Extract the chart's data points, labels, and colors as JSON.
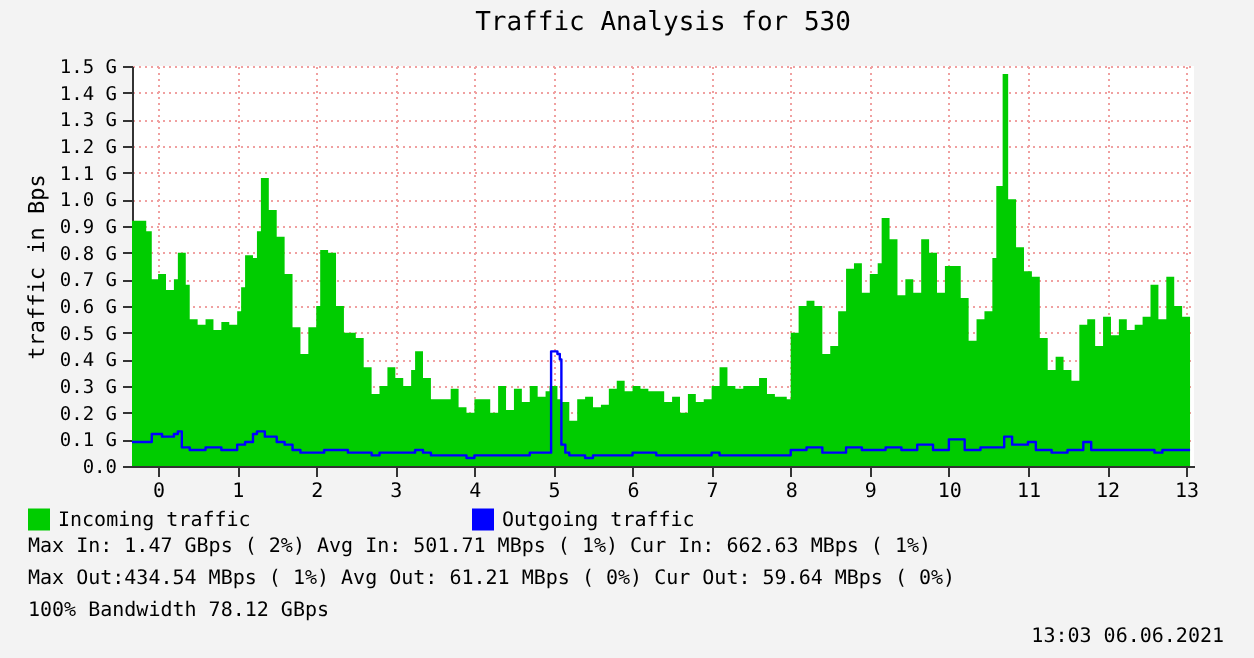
{
  "chart_data": {
    "type": "area",
    "title": "Traffic Analysis for 530",
    "ylabel": "traffic in Bps",
    "xlim": [
      -0.33,
      13.1
    ],
    "xticks": [
      0,
      1,
      2,
      3,
      4,
      5,
      6,
      7,
      8,
      9,
      10,
      11,
      12,
      13
    ],
    "ylim": [
      0,
      1.5
    ],
    "yticks": [
      {
        "value": 0,
        "label": "0.0"
      },
      {
        "value": 0.1,
        "label": "0.1 G"
      },
      {
        "value": 0.2,
        "label": "0.2 G"
      },
      {
        "value": 0.3,
        "label": "0.3 G"
      },
      {
        "value": 0.4,
        "label": "0.4 G"
      },
      {
        "value": 0.5,
        "label": "0.5 G"
      },
      {
        "value": 0.6,
        "label": "0.6 G"
      },
      {
        "value": 0.7,
        "label": "0.7 G"
      },
      {
        "value": 0.8,
        "label": "0.8 G"
      },
      {
        "value": 0.9,
        "label": "0.9 G"
      },
      {
        "value": 1.0,
        "label": "1.0 G"
      },
      {
        "value": 1.1,
        "label": "1.1 G"
      },
      {
        "value": 1.2,
        "label": "1.2 G"
      },
      {
        "value": 1.3,
        "label": "1.3 G"
      },
      {
        "value": 1.4,
        "label": "1.4 G"
      },
      {
        "value": 1.5,
        "label": "1.5 G"
      }
    ],
    "grid": true,
    "legend": "bottom",
    "marker": "none",
    "line_style": "solid",
    "series": [
      {
        "name": "Incoming traffic",
        "color": "#00cc00",
        "x": [
          -0.33,
          -0.15,
          -0.08,
          0.0,
          0.1,
          0.2,
          0.25,
          0.35,
          0.4,
          0.5,
          0.6,
          0.7,
          0.8,
          0.9,
          1.0,
          1.05,
          1.1,
          1.2,
          1.25,
          1.3,
          1.4,
          1.5,
          1.6,
          1.7,
          1.8,
          1.9,
          2.0,
          2.05,
          2.15,
          2.25,
          2.35,
          2.5,
          2.6,
          2.7,
          2.8,
          2.9,
          3.0,
          3.1,
          3.2,
          3.25,
          3.35,
          3.45,
          3.6,
          3.7,
          3.8,
          3.9,
          4.0,
          4.1,
          4.2,
          4.3,
          4.4,
          4.5,
          4.6,
          4.7,
          4.8,
          4.9,
          4.95,
          5.05,
          5.1,
          5.2,
          5.3,
          5.4,
          5.5,
          5.6,
          5.7,
          5.8,
          5.9,
          6.0,
          6.1,
          6.2,
          6.4,
          6.5,
          6.6,
          6.7,
          6.8,
          6.9,
          7.0,
          7.1,
          7.2,
          7.3,
          7.4,
          7.6,
          7.7,
          7.8,
          7.95,
          8.0,
          8.1,
          8.2,
          8.3,
          8.4,
          8.5,
          8.6,
          8.7,
          8.8,
          8.9,
          9.0,
          9.1,
          9.15,
          9.25,
          9.35,
          9.45,
          9.55,
          9.65,
          9.75,
          9.85,
          9.95,
          10.05,
          10.15,
          10.25,
          10.35,
          10.45,
          10.55,
          10.6,
          10.68,
          10.75,
          10.85,
          10.95,
          11.05,
          11.15,
          11.25,
          11.35,
          11.45,
          11.55,
          11.65,
          11.75,
          11.85,
          11.95,
          12.05,
          12.15,
          12.25,
          12.35,
          12.45,
          12.55,
          12.65,
          12.75,
          12.85,
          12.95,
          13.05
        ],
        "values": [
          0.92,
          0.88,
          0.7,
          0.72,
          0.66,
          0.7,
          0.8,
          0.68,
          0.55,
          0.53,
          0.55,
          0.51,
          0.54,
          0.53,
          0.58,
          0.67,
          0.79,
          0.78,
          0.88,
          1.08,
          0.96,
          0.86,
          0.72,
          0.52,
          0.42,
          0.52,
          0.6,
          0.81,
          0.8,
          0.6,
          0.5,
          0.48,
          0.37,
          0.27,
          0.3,
          0.37,
          0.33,
          0.3,
          0.36,
          0.43,
          0.33,
          0.25,
          0.25,
          0.29,
          0.22,
          0.2,
          0.25,
          0.25,
          0.2,
          0.3,
          0.21,
          0.29,
          0.24,
          0.3,
          0.26,
          0.28,
          0.3,
          0.25,
          0.24,
          0.17,
          0.25,
          0.26,
          0.22,
          0.23,
          0.29,
          0.32,
          0.28,
          0.3,
          0.29,
          0.28,
          0.24,
          0.26,
          0.2,
          0.27,
          0.24,
          0.25,
          0.3,
          0.37,
          0.3,
          0.29,
          0.3,
          0.33,
          0.27,
          0.26,
          0.25,
          0.5,
          0.6,
          0.62,
          0.6,
          0.42,
          0.45,
          0.58,
          0.74,
          0.76,
          0.65,
          0.72,
          0.76,
          0.93,
          0.85,
          0.64,
          0.7,
          0.65,
          0.85,
          0.8,
          0.65,
          0.75,
          0.75,
          0.63,
          0.47,
          0.55,
          0.58,
          0.78,
          1.05,
          1.47,
          1.0,
          0.82,
          0.73,
          0.71,
          0.48,
          0.36,
          0.41,
          0.36,
          0.32,
          0.53,
          0.55,
          0.45,
          0.56,
          0.49,
          0.55,
          0.51,
          0.53,
          0.56,
          0.68,
          0.55,
          0.71,
          0.6,
          0.56,
          0.65
        ]
      },
      {
        "name": "Outgoing traffic",
        "color": "#0000ff",
        "type": "step",
        "x": [
          -0.33,
          -0.1,
          -0.08,
          0.0,
          0.05,
          0.2,
          0.25,
          0.3,
          0.4,
          0.6,
          0.8,
          1.0,
          1.1,
          1.2,
          1.25,
          1.35,
          1.5,
          1.6,
          1.7,
          1.8,
          2.0,
          2.1,
          2.4,
          2.6,
          2.7,
          2.8,
          3.0,
          3.25,
          3.35,
          3.45,
          3.8,
          3.9,
          4.0,
          4.6,
          4.7,
          4.95,
          4.97,
          5.05,
          5.08,
          5.1,
          5.15,
          5.2,
          5.4,
          5.5,
          6.0,
          6.3,
          6.7,
          7.0,
          7.1,
          7.95,
          8.0,
          8.2,
          8.4,
          8.7,
          8.9,
          9.2,
          9.4,
          9.6,
          9.8,
          10.0,
          10.2,
          10.4,
          10.6,
          10.7,
          10.8,
          11.0,
          11.1,
          11.3,
          11.5,
          11.7,
          11.8,
          12.0,
          12.4,
          12.6,
          12.7,
          13.0,
          13.05
        ],
        "values": [
          0.09,
          0.09,
          0.12,
          0.12,
          0.11,
          0.12,
          0.13,
          0.07,
          0.06,
          0.07,
          0.06,
          0.08,
          0.09,
          0.12,
          0.13,
          0.11,
          0.09,
          0.08,
          0.06,
          0.05,
          0.05,
          0.06,
          0.05,
          0.05,
          0.04,
          0.05,
          0.05,
          0.06,
          0.05,
          0.04,
          0.04,
          0.03,
          0.04,
          0.04,
          0.05,
          0.05,
          0.43,
          0.42,
          0.4,
          0.08,
          0.05,
          0.04,
          0.03,
          0.04,
          0.05,
          0.04,
          0.04,
          0.05,
          0.04,
          0.04,
          0.06,
          0.07,
          0.05,
          0.07,
          0.06,
          0.07,
          0.06,
          0.08,
          0.06,
          0.1,
          0.06,
          0.07,
          0.07,
          0.11,
          0.08,
          0.09,
          0.06,
          0.05,
          0.06,
          0.09,
          0.06,
          0.06,
          0.06,
          0.05,
          0.06,
          0.06,
          0.06
        ]
      }
    ],
    "annotations": [
      "Max In:   1.47 GBps ( 2%)  Avg In: 501.71 MBps ( 1%)  Cur In: 662.63 MBps ( 1%)",
      "Max Out:434.54 MBps ( 1%)  Avg Out: 61.21 MBps ( 0%)  Cur Out: 59.64 MBps ( 0%)",
      "100% Bandwidth 78.12 GBps",
      "13:03 06.06.2021"
    ]
  }
}
